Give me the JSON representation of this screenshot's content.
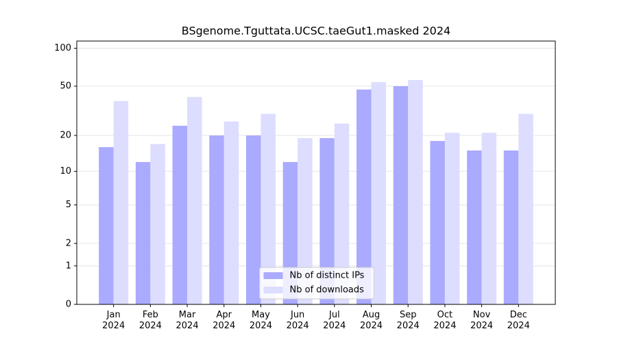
{
  "chart_data": {
    "type": "bar",
    "title": "BSgenome.Tguttata.UCSC.taeGut1.masked 2024",
    "categories": [
      "Jan\n2024",
      "Feb\n2024",
      "Mar\n2024",
      "Apr\n2024",
      "May\n2024",
      "Jun\n2024",
      "Jul\n2024",
      "Aug\n2024",
      "Sep\n2024",
      "Oct\n2024",
      "Nov\n2024",
      "Dec\n2024"
    ],
    "series": [
      {
        "name": "Nb of distinct IPs",
        "color": "#aaaaff",
        "values": [
          16,
          12,
          24,
          20,
          20,
          12,
          19,
          47,
          50,
          18,
          15,
          15
        ]
      },
      {
        "name": "Nb of downloads",
        "color": "#ddddff",
        "values": [
          38,
          17,
          41,
          26,
          30,
          19,
          25,
          54,
          56,
          21,
          21,
          30
        ]
      }
    ],
    "yscale": "log1p",
    "ylim": [
      0,
      114
    ],
    "yticks": [
      0,
      1,
      2,
      5,
      10,
      20,
      50,
      100
    ],
    "grid": true,
    "legend": "lower center"
  }
}
